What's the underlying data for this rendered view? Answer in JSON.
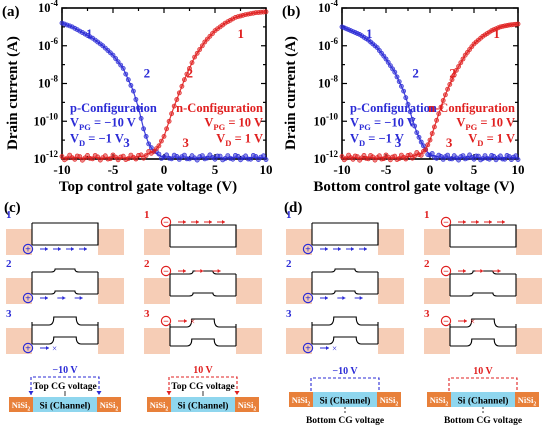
{
  "chart_data": [
    {
      "panel": "(a)",
      "type": "scatter",
      "xlabel": "Top control gate voltage (V)",
      "ylabel": "Drain current (A)",
      "xlim": [
        -10,
        10
      ],
      "ylim_log10": [
        -12,
        -4
      ],
      "x_ticks": [
        "-10",
        "-5",
        "0",
        "5",
        "10"
      ],
      "y_ticks": [
        "10^-12",
        "10^-10",
        "10^-8",
        "10^-6",
        "10^-4"
      ],
      "log_y": true,
      "series": [
        {
          "config": "p",
          "color": "#2b2bd6",
          "x": [
            -10,
            -9,
            -8,
            -7,
            -6,
            -5,
            -4,
            -3,
            -2.5,
            -2,
            -1.5,
            -1,
            -0.5,
            0,
            1,
            2,
            3,
            4,
            5,
            6,
            7,
            8,
            9,
            10
          ],
          "y_log10": [
            -4.8,
            -5.0,
            -5.3,
            -5.6,
            -6.0,
            -6.5,
            -7.2,
            -8.4,
            -9.3,
            -10.4,
            -11.2,
            -11.6,
            -11.8,
            -11.9,
            -11.9,
            -11.9,
            -11.95,
            -11.9,
            -11.9,
            -11.95,
            -11.9,
            -11.95,
            -11.9,
            -11.95
          ]
        },
        {
          "config": "n",
          "color": "#e02020",
          "x": [
            -10,
            -9,
            -8,
            -7,
            -6,
            -5,
            -4,
            -3,
            -2,
            -1,
            -0.5,
            0,
            0.5,
            1,
            1.5,
            2,
            3,
            4,
            5,
            6,
            7,
            8,
            9,
            10
          ],
          "y_log10": [
            -11.95,
            -11.9,
            -11.95,
            -11.9,
            -11.95,
            -11.9,
            -11.95,
            -11.9,
            -11.85,
            -11.6,
            -11.3,
            -10.8,
            -10.0,
            -9.2,
            -8.5,
            -7.8,
            -6.6,
            -5.8,
            -5.2,
            -4.8,
            -4.5,
            -4.35,
            -4.25,
            -4.2
          ]
        }
      ],
      "region_labels_p": [
        "1",
        "2",
        "3"
      ],
      "region_labels_n": [
        "1",
        "2",
        "3"
      ],
      "legend_p": [
        "p-Configuration",
        "V_PG = −10 V",
        "V_D = −1 V"
      ],
      "legend_n": [
        "n-Configuration",
        "V_PG = 10 V",
        "V_D = 1 V"
      ]
    },
    {
      "panel": "(b)",
      "type": "scatter",
      "xlabel": "Bottom control gate voltage (V)",
      "ylabel": "Drain current (A)",
      "xlim": [
        -10,
        10
      ],
      "ylim_log10": [
        -12,
        -4
      ],
      "x_ticks": [
        "-10",
        "-5",
        "0",
        "5",
        "10"
      ],
      "y_ticks": [
        "10^-12",
        "10^-10",
        "10^-8",
        "10^-6",
        "10^-4"
      ],
      "log_y": true,
      "series": [
        {
          "config": "p",
          "color": "#2b2bd6",
          "x": [
            -10,
            -9,
            -8,
            -7,
            -6,
            -5,
            -4,
            -3,
            -2.5,
            -2,
            -1.5,
            -1,
            -0.5,
            0,
            1,
            2,
            3,
            4,
            5,
            6,
            7,
            8,
            9,
            10
          ],
          "y_log10": [
            -5.0,
            -5.2,
            -5.4,
            -5.7,
            -6.1,
            -6.7,
            -7.4,
            -8.4,
            -9.1,
            -9.9,
            -10.6,
            -11.1,
            -11.5,
            -11.8,
            -11.9,
            -11.9,
            -11.95,
            -11.9,
            -11.9,
            -11.95,
            -11.9,
            -11.95,
            -11.9,
            -11.95
          ]
        },
        {
          "config": "n",
          "color": "#e02020",
          "x": [
            -10,
            -9,
            -8,
            -7,
            -6,
            -5,
            -4,
            -3,
            -2,
            -1,
            -0.5,
            0,
            0.5,
            1,
            1.5,
            2,
            3,
            4,
            5,
            6,
            7,
            8,
            9,
            10
          ],
          "y_log10": [
            -11.95,
            -11.9,
            -11.95,
            -11.9,
            -11.95,
            -11.9,
            -11.95,
            -11.9,
            -11.85,
            -11.7,
            -11.5,
            -11.0,
            -10.3,
            -9.6,
            -8.9,
            -8.3,
            -7.3,
            -6.5,
            -5.9,
            -5.5,
            -5.2,
            -5.0,
            -4.9,
            -4.85
          ]
        }
      ],
      "region_labels_p": [
        "1",
        "2",
        "3"
      ],
      "region_labels_n": [
        "1",
        "2",
        "3"
      ],
      "legend_p": [
        "p-Configuration",
        "V_PG = −10 V",
        "V_D = −1 V"
      ],
      "legend_n": [
        "n-Configuration",
        "V_PG = 10 V",
        "V_D = 1 V"
      ]
    }
  ],
  "panels": {
    "a": "(a)",
    "b": "(b)",
    "c": "(c)",
    "d": "(d)"
  },
  "diagram_c": {
    "row_labels": [
      "1",
      "2",
      "3"
    ],
    "p_voltage": "−10 V",
    "n_voltage": "10 V",
    "cg_label": "Top CG voltage",
    "channel": "Si (Channel)",
    "contact": "NiSi",
    "contact_sub": "2"
  },
  "diagram_d": {
    "row_labels": [
      "1",
      "2",
      "3"
    ],
    "p_voltage": "−10 V",
    "n_voltage": "10 V",
    "cg_label": "Bottom CG voltage",
    "channel": "Si (Channel)",
    "contact": "NiSi",
    "contact_sub": "2"
  },
  "colors": {
    "p": "#2b2bd6",
    "n": "#e02020",
    "contact": "#e8803a",
    "channel": "#8fd6ee",
    "band_fill": "#f6cdb6"
  }
}
